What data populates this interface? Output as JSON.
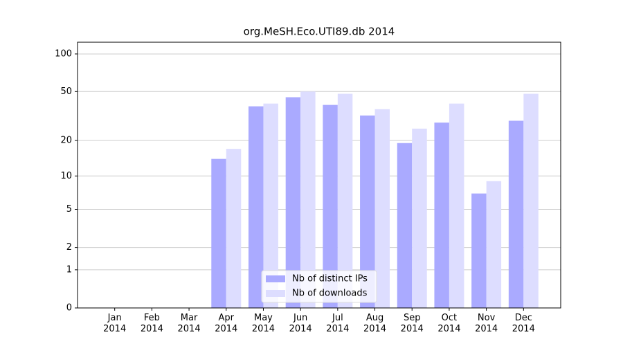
{
  "chart_data": {
    "type": "bar",
    "title": "org.MeSH.Eco.UTI89.db 2014",
    "categories": [
      "Jan\n2014",
      "Feb\n2014",
      "Mar\n2014",
      "Apr\n2014",
      "May\n2014",
      "Jun\n2014",
      "Jul\n2014",
      "Aug\n2014",
      "Sep\n2014",
      "Oct\n2014",
      "Nov\n2014",
      "Dec\n2014"
    ],
    "series": [
      {
        "name": "Nb of distinct IPs",
        "color": "#aaaaff",
        "values": [
          0,
          0,
          0,
          14,
          38,
          45,
          39,
          32,
          19,
          28,
          7,
          29
        ]
      },
      {
        "name": "Nb of downloads",
        "color": "#ddddff",
        "values": [
          0,
          0,
          0,
          17,
          40,
          50,
          48,
          36,
          25,
          40,
          9,
          48
        ]
      }
    ],
    "yscale": "log1p",
    "ylim": [
      0,
      124
    ],
    "yticks": [
      0,
      1,
      2,
      5,
      10,
      20,
      50,
      100
    ],
    "grid": true,
    "legend": "lower center"
  }
}
